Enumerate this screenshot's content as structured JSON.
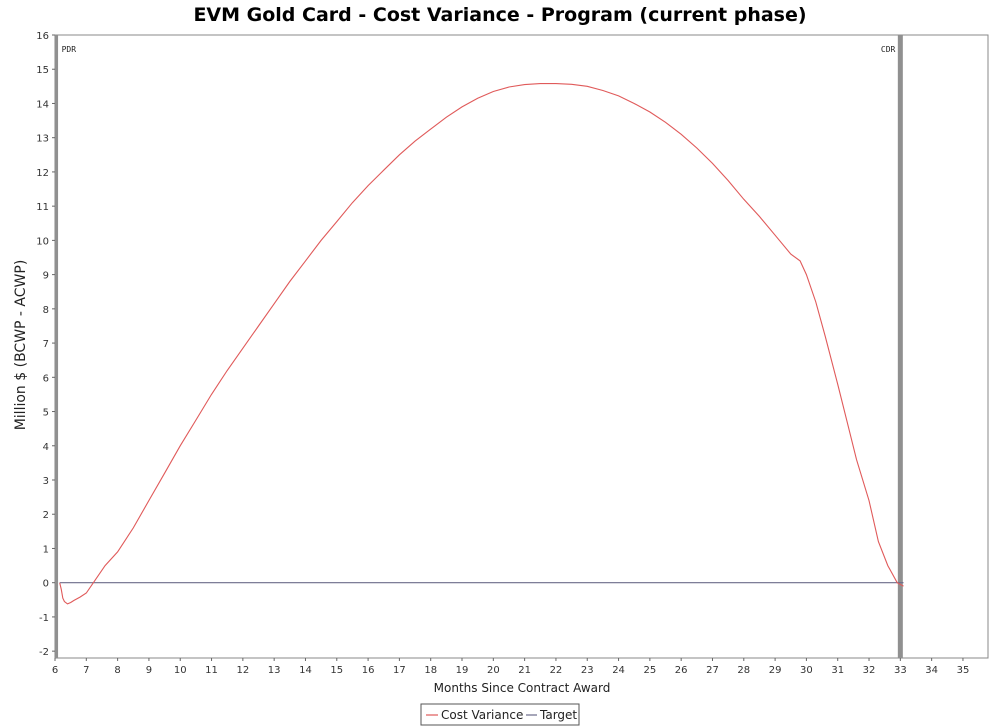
{
  "chart_data": {
    "type": "line",
    "title": "EVM Gold Card - Cost Variance - Program (current phase)",
    "xlabel": "Months Since Contract Award",
    "ylabel": "Million $ (BCWP - ACWP)",
    "xlim": [
      6,
      35.8
    ],
    "ylim": [
      -2.2,
      16
    ],
    "xticks": [
      6,
      7,
      8,
      9,
      10,
      11,
      12,
      13,
      14,
      15,
      16,
      17,
      18,
      19,
      20,
      21,
      22,
      23,
      24,
      25,
      26,
      27,
      28,
      29,
      30,
      31,
      32,
      33,
      34,
      35
    ],
    "yticks": [
      -2,
      -1,
      0,
      1,
      2,
      3,
      4,
      5,
      6,
      7,
      8,
      9,
      10,
      11,
      12,
      13,
      14,
      15,
      16
    ],
    "grid": false,
    "legend_placement": "bottom-center",
    "series": [
      {
        "name": "Cost Variance",
        "color": "#e05a5a",
        "x": [
          6.15,
          6.2,
          6.25,
          6.3,
          6.4,
          6.5,
          6.6,
          6.8,
          7.0,
          7.3,
          7.6,
          8.0,
          8.5,
          9.0,
          9.5,
          10.0,
          10.5,
          11.0,
          11.5,
          12.0,
          12.5,
          13.0,
          13.5,
          14.0,
          14.5,
          15.0,
          15.5,
          16.0,
          16.5,
          17.0,
          17.5,
          18.0,
          18.5,
          19.0,
          19.5,
          20.0,
          20.5,
          21.0,
          21.5,
          22.0,
          22.5,
          23.0,
          23.5,
          24.0,
          24.5,
          25.0,
          25.5,
          26.0,
          26.5,
          27.0,
          27.5,
          28.0,
          28.5,
          29.0,
          29.5,
          29.8,
          30.0,
          30.3,
          30.6,
          31.0,
          31.3,
          31.6,
          32.0,
          32.3,
          32.6,
          32.9,
          33.1
        ],
        "y": [
          0.0,
          -0.2,
          -0.45,
          -0.55,
          -0.62,
          -0.58,
          -0.52,
          -0.42,
          -0.3,
          0.1,
          0.5,
          0.9,
          1.6,
          2.4,
          3.2,
          4.0,
          4.75,
          5.5,
          6.2,
          6.85,
          7.5,
          8.15,
          8.8,
          9.4,
          10.0,
          10.55,
          11.1,
          11.6,
          12.05,
          12.5,
          12.9,
          13.25,
          13.6,
          13.9,
          14.15,
          14.35,
          14.48,
          14.55,
          14.58,
          14.58,
          14.56,
          14.5,
          14.38,
          14.22,
          14.0,
          13.75,
          13.45,
          13.1,
          12.7,
          12.25,
          11.75,
          11.2,
          10.7,
          10.15,
          9.6,
          9.4,
          9.0,
          8.2,
          7.2,
          5.8,
          4.7,
          3.6,
          2.4,
          1.2,
          0.5,
          0.0,
          -0.1
        ]
      },
      {
        "name": "Target",
        "color": "#6b6b8a",
        "x": [
          6.15,
          33.1
        ],
        "y": [
          0,
          0
        ]
      }
    ],
    "markers": [
      {
        "label": "PDR",
        "x": 6.05
      },
      {
        "label": "CDR",
        "x": 33.0
      }
    ]
  }
}
